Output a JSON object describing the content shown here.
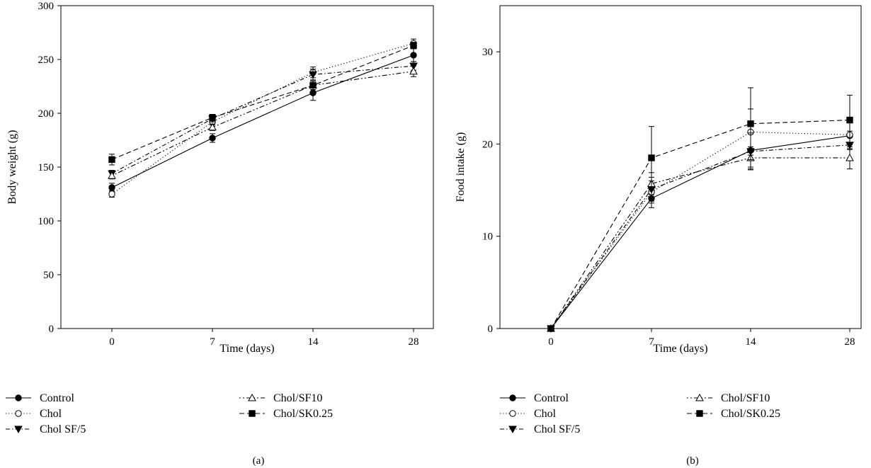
{
  "chart_data": [
    {
      "type": "line",
      "panel_label": "(a)",
      "xlabel": "Time (days)",
      "ylabel": "Body weight (g)",
      "categories": [
        "0",
        "7",
        "14",
        "28"
      ],
      "ylim": [
        0,
        300
      ],
      "yticks": [
        0,
        50,
        100,
        150,
        200,
        250,
        300
      ],
      "grid": false,
      "legend_position": "bottom",
      "series": [
        {
          "name": "Control",
          "values": [
            131,
            177,
            219,
            254
          ],
          "errors": [
            4,
            4,
            7,
            6
          ],
          "marker": "circle-filled",
          "dash": "solid"
        },
        {
          "name": "Chol",
          "values": [
            125,
            192,
            238,
            265
          ],
          "errors": [
            3,
            3,
            5,
            4
          ],
          "marker": "circle-open",
          "dash": "dotted"
        },
        {
          "name": "Chol SF/5",
          "values": [
            144,
            195,
            236,
            244
          ],
          "errors": [
            3,
            3,
            5,
            4
          ],
          "marker": "triangle-down-filled",
          "dash": "dashdot"
        },
        {
          "name": "Chol/SF10",
          "values": [
            142,
            187,
            226,
            239
          ],
          "errors": [
            3,
            3,
            4,
            5
          ],
          "marker": "triangle-up-open",
          "dash": "dashdotdot"
        },
        {
          "name": "Chol/SK0.25",
          "values": [
            157,
            196,
            226,
            263
          ],
          "errors": [
            5,
            3,
            4,
            3
          ],
          "marker": "square-filled",
          "dash": "dashed"
        }
      ]
    },
    {
      "type": "line",
      "panel_label": "(b)",
      "xlabel": "Time (days)",
      "ylabel": "Food intake (g)",
      "categories": [
        "0",
        "7",
        "14",
        "28"
      ],
      "ylim": [
        0,
        35
      ],
      "yticks": [
        0,
        10,
        20,
        30
      ],
      "grid": false,
      "legend_position": "bottom",
      "series": [
        {
          "name": "Control",
          "values": [
            0,
            14.1,
            19.3,
            20.9
          ],
          "errors": [
            0,
            1.0,
            1.8,
            1.5
          ],
          "marker": "circle-filled",
          "dash": "solid"
        },
        {
          "name": "Chol",
          "values": [
            0,
            14.8,
            21.3,
            21.0
          ],
          "errors": [
            0,
            1.2,
            2.5,
            1.5
          ],
          "marker": "circle-open",
          "dash": "dotted"
        },
        {
          "name": "Chol SF/5",
          "values": [
            0,
            15.1,
            19.2,
            19.9
          ],
          "errors": [
            0,
            1.3,
            2.0,
            1.5
          ],
          "marker": "triangle-down-filled",
          "dash": "dashdot"
        },
        {
          "name": "Chol/SF10",
          "values": [
            0,
            15.7,
            18.5,
            18.5
          ],
          "errors": [
            0,
            1.2,
            1.2,
            1.2
          ],
          "marker": "triangle-up-open",
          "dash": "dashdotdot"
        },
        {
          "name": "Chol/SK0.25",
          "values": [
            0,
            18.5,
            22.2,
            22.6
          ],
          "errors": [
            0,
            3.4,
            3.9,
            2.7
          ],
          "marker": "square-filled",
          "dash": "dashed"
        }
      ]
    }
  ]
}
